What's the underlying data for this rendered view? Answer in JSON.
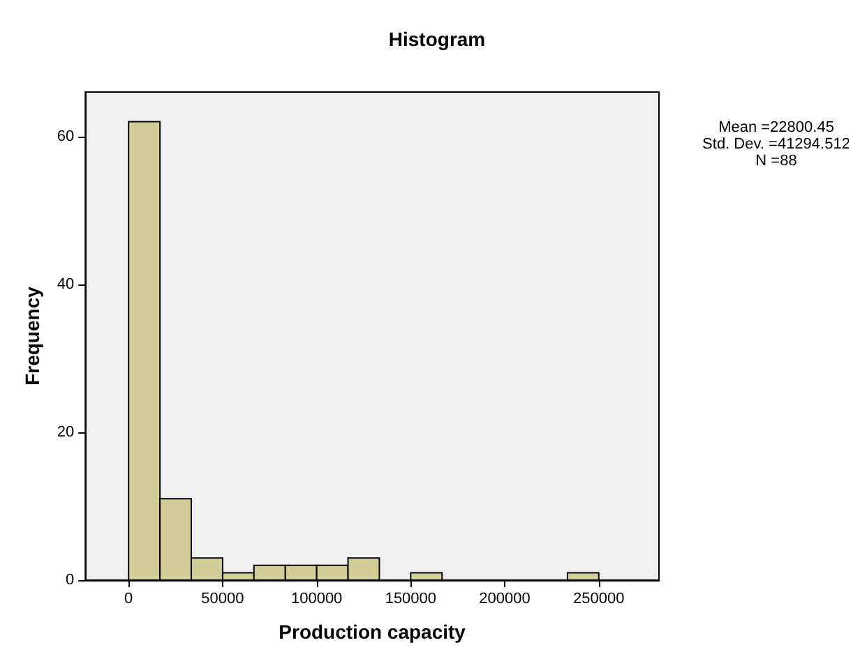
{
  "chart_data": {
    "type": "histogram",
    "title": "Histogram",
    "xlabel": "Production capacity",
    "ylabel": "Frequency",
    "bins": [
      0,
      16667,
      33333,
      50000,
      66667,
      83333,
      100000,
      116667,
      133333,
      150000,
      166667,
      183333,
      200000,
      216667,
      233333,
      250000
    ],
    "values": [
      62,
      11,
      3,
      1,
      2,
      2,
      2,
      3,
      0,
      1,
      0,
      0,
      0,
      0,
      1
    ],
    "color": "#d3ce97",
    "xlim": [
      -23000,
      282000
    ],
    "xticks": [
      0,
      50000,
      100000,
      150000,
      200000,
      250000
    ],
    "ylim": [
      0,
      66
    ],
    "yticks": [
      0,
      20,
      40,
      60
    ],
    "grid": false,
    "annotations": [
      "Mean =22800.45",
      "Std. Dev. =41294.512",
      "N =88"
    ]
  }
}
